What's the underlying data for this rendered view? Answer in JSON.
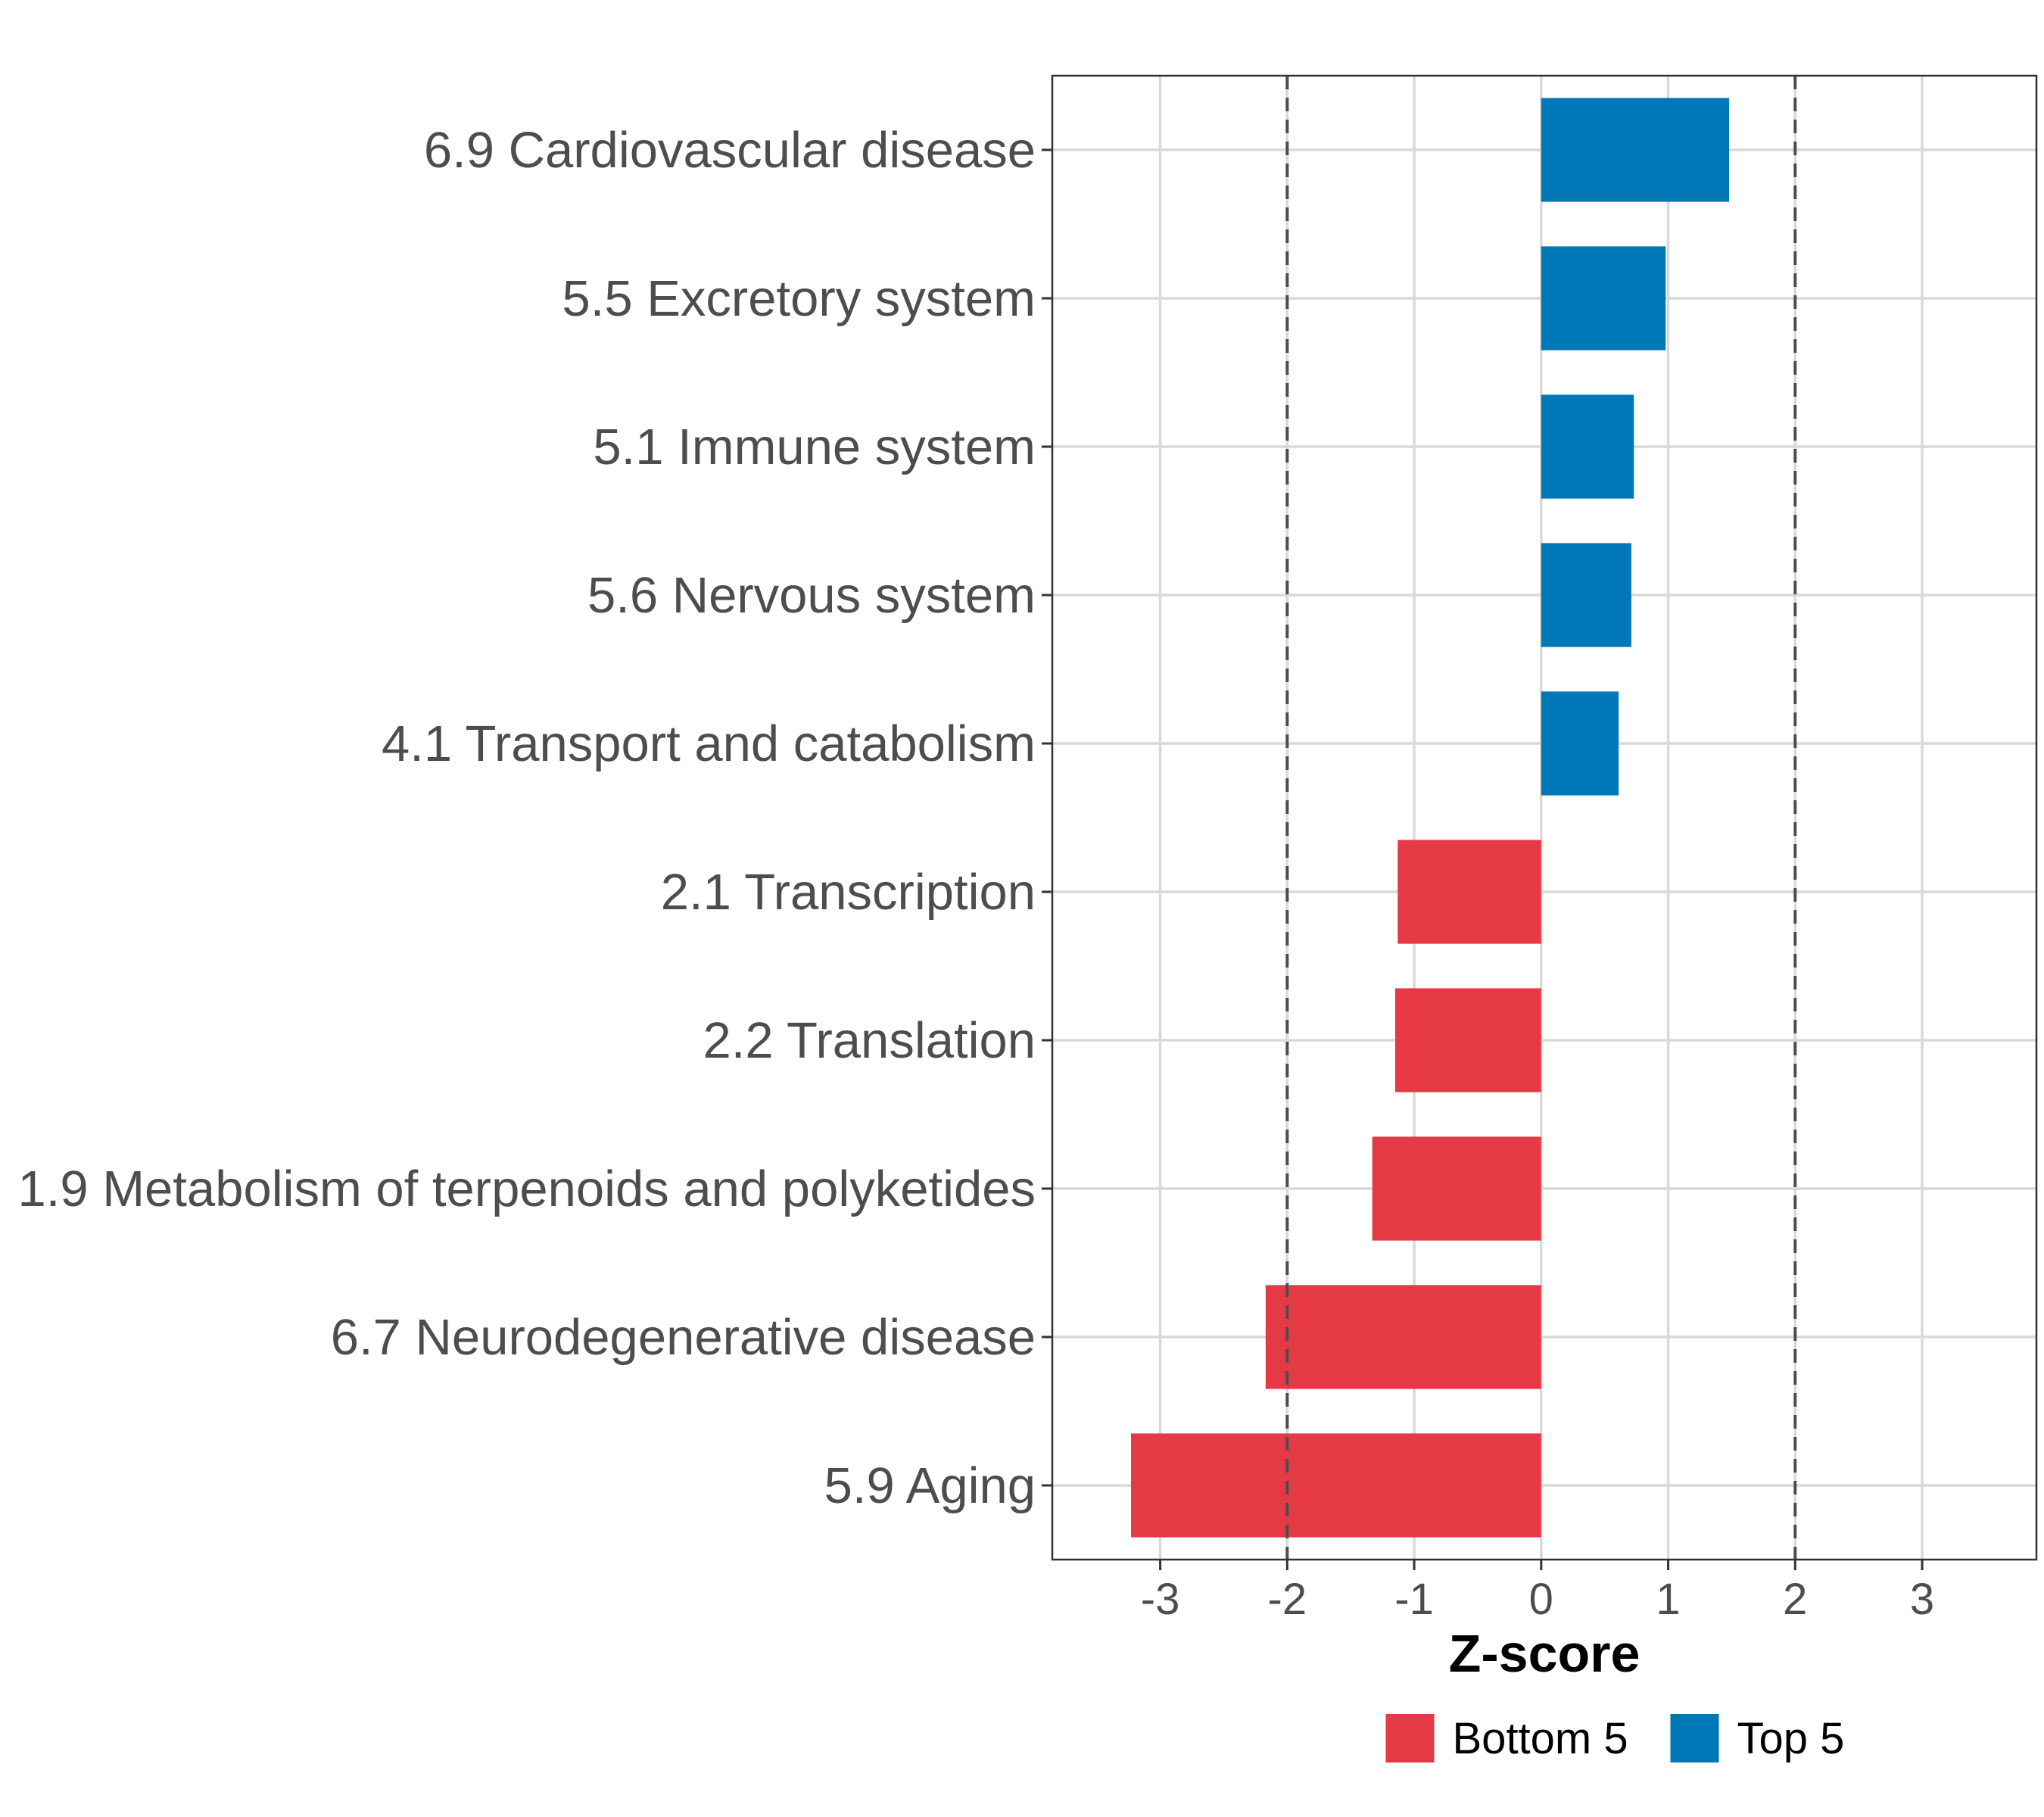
{
  "chart_data": {
    "type": "bar",
    "orientation": "horizontal",
    "title": "",
    "xlabel": "Z-score",
    "ylabel": "",
    "xlim": [
      -3.85,
      3.9
    ],
    "xticks": [
      -3,
      -2,
      -1,
      0,
      1,
      2,
      3
    ],
    "xtick_labels": [
      "-3",
      "-2",
      "-1",
      "0",
      "1",
      "2",
      "3"
    ],
    "reference_lines": [
      -2,
      2
    ],
    "grid": true,
    "legend_position": "bottom",
    "categories": [
      "6.9 Cardiovascular disease",
      "5.5 Excretory system",
      "5.1 Immune system",
      "5.6 Nervous system",
      "4.1 Transport and catabolism",
      "2.1 Transcription",
      "2.2 Translation",
      "1.9 Metabolism of terpenoids and polyketides",
      "6.7 Neurodegenerative disease",
      "5.9 Aging"
    ],
    "values": [
      1.48,
      0.98,
      0.73,
      0.71,
      0.61,
      -1.13,
      -1.15,
      -1.33,
      -2.17,
      -3.23
    ],
    "groups": [
      "Top 5",
      "Top 5",
      "Top 5",
      "Top 5",
      "Top 5",
      "Bottom 5",
      "Bottom 5",
      "Bottom 5",
      "Bottom 5",
      "Bottom 5"
    ],
    "legend": [
      {
        "name": "Bottom 5",
        "color": "#e63946"
      },
      {
        "name": "Top 5",
        "color": "#0077b6"
      }
    ]
  }
}
